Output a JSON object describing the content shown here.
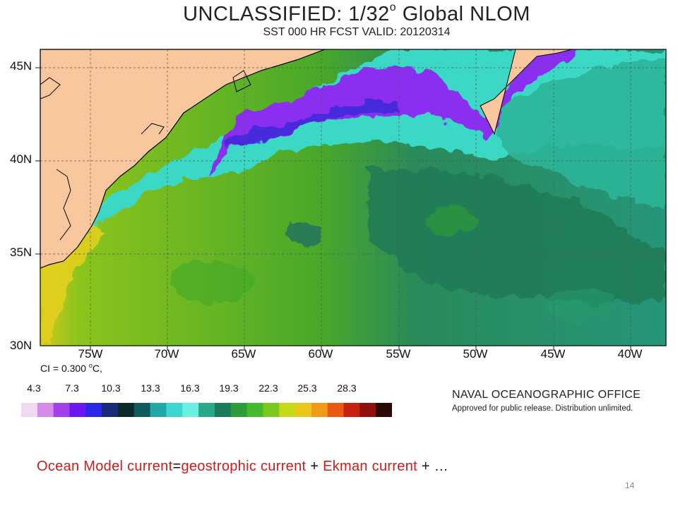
{
  "title": {
    "main": "UNCLASSIFIED: 1/32",
    "degree": "o",
    "suffix": "Global NLOM"
  },
  "subtitle": "SST 000 HR FCST VALID: 20120314",
  "map": {
    "latitude_labels": [
      "45N",
      "40N",
      "35N",
      "30N"
    ],
    "longitude_labels": [
      "75W",
      "70W",
      "65W",
      "60W",
      "55W",
      "50W",
      "45W",
      "40W"
    ],
    "land_color": "#f9c79e",
    "coast_color": "#000000"
  },
  "contour_interval": {
    "prefix": "CI = 0.300 ",
    "degree": "o",
    "unit": "C,"
  },
  "colorbar": {
    "labels": [
      "4.3",
      "7.3",
      "10.3",
      "13.3",
      "16.3",
      "19.3",
      "22.3",
      "25.3",
      "28.3"
    ],
    "colors": [
      "#f2d9f2",
      "#d58be8",
      "#a33ee8",
      "#6a17f0",
      "#2a28e6",
      "#1a2a7a",
      "#0b2a2a",
      "#0f5a5a",
      "#20a7a7",
      "#3ad8d0",
      "#6af0e0",
      "#2aa88a",
      "#1a7a5a",
      "#2e9a3a",
      "#45b830",
      "#78c81f",
      "#c8d81a",
      "#e8c81a",
      "#f09a1a",
      "#e85a12",
      "#c82010",
      "#901010",
      "#2a0808"
    ]
  },
  "office": "NAVAL OCEANOGRAPHIC OFFICE",
  "approval": "Approved for public release. Distribution unlimited.",
  "caption": {
    "part1": "Ocean Model current",
    "eq": "=",
    "part2": "geostrophic current",
    "plus1": " + ",
    "part3": "Ekman current",
    "plus2": " + …"
  },
  "page_number": "14"
}
